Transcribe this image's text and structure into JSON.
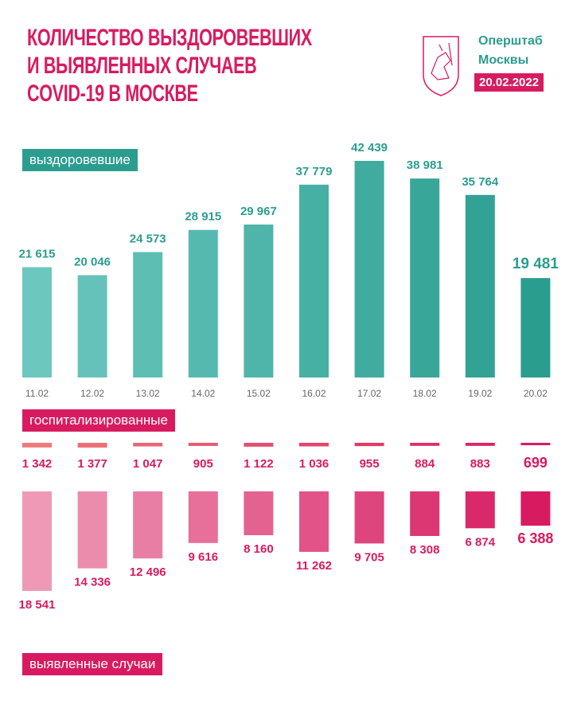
{
  "title_lines": [
    "КОЛИЧЕСТВО ВЫЗДОРОВЕВШИХ",
    "И ВЫЯВЛЕННЫХ СЛУЧАЕВ",
    "COVID-19 В МОСКВЕ"
  ],
  "org_lines": [
    "Оперштаб",
    "Москвы"
  ],
  "date": "20.02.2022",
  "logo_icon": "moscow-coat-of-arms-icon",
  "colors": {
    "magenta": "#d81b60",
    "teal": "#2a9d8f",
    "teal_light": "#6cc7bf",
    "pink_light": "#ee9ab7",
    "salmon": "#ee7b7b"
  },
  "chart_data": [
    {
      "type": "bar",
      "name_label": "выздоровевшие",
      "categories": [
        "11.02",
        "12.02",
        "13.02",
        "14.02",
        "15.02",
        "16.02",
        "17.02",
        "18.02",
        "19.02",
        "20.02"
      ],
      "values": [
        21615,
        20046,
        24573,
        28915,
        29967,
        37779,
        42439,
        38981,
        35764,
        19481
      ],
      "value_labels": [
        "21 615",
        "20 046",
        "24 573",
        "28 915",
        "29 967",
        "37 779",
        "42 439",
        "38 981",
        "35 764",
        "19 481"
      ]
    },
    {
      "type": "bar",
      "name_label": "госпитализированные",
      "categories": [
        "11.02",
        "12.02",
        "13.02",
        "14.02",
        "15.02",
        "16.02",
        "17.02",
        "18.02",
        "19.02",
        "20.02"
      ],
      "values": [
        1342,
        1377,
        1047,
        905,
        1122,
        1036,
        955,
        884,
        883,
        699
      ],
      "value_labels": [
        "1 342",
        "1 377",
        "1 047",
        "905",
        "1 122",
        "1 036",
        "955",
        "884",
        "883",
        "699"
      ]
    },
    {
      "type": "bar",
      "name_label": "выявленные случаи",
      "categories": [
        "11.02",
        "12.02",
        "13.02",
        "14.02",
        "15.02",
        "16.02",
        "17.02",
        "18.02",
        "19.02",
        "20.02"
      ],
      "values": [
        18541,
        14336,
        12496,
        9616,
        8160,
        11262,
        9705,
        8308,
        6874,
        6388
      ],
      "value_labels": [
        "18 541",
        "14 336",
        "12 496",
        "9 616",
        "8 160",
        "11 262",
        "9 705",
        "8 308",
        "6 874",
        "6 388"
      ]
    }
  ]
}
